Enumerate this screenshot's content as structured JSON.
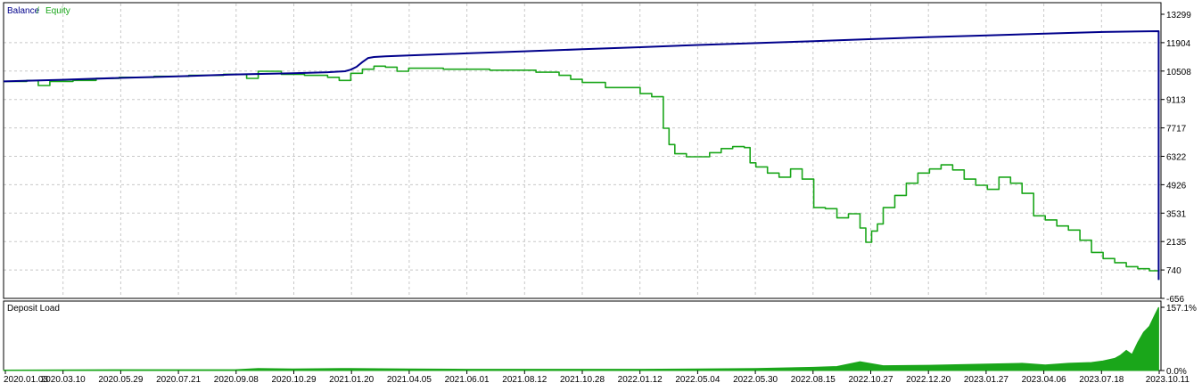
{
  "chart_data": [
    {
      "type": "line",
      "legend": {
        "balance": "Balance",
        "separator": " / ",
        "equity": "Equity",
        "placement": "top-left"
      },
      "ylim": [
        -656,
        13299
      ],
      "yticks": [
        "13299",
        "11904",
        "10508",
        "9113",
        "7717",
        "6322",
        "4926",
        "3531",
        "2135",
        "740",
        "-656"
      ],
      "xticks": [
        "2020.01.03",
        "2020.03.10",
        "2020.05.29",
        "2020.07.21",
        "2020.09.08",
        "2020.10.29",
        "2021.01.20",
        "2021.04.05",
        "2021.06.01",
        "2021.08.12",
        "2021.10.28",
        "2022.01.12",
        "2022.05.04",
        "2022.05.30",
        "2022.08.15",
        "2022.10.27",
        "2022.12.20",
        "2023.01.27",
        "2023.04.06",
        "2023.07.18",
        "2023.10.11"
      ],
      "grid": true,
      "colors": {
        "balance": "#00008b",
        "equity": "#1aa61a",
        "grid": "#c8c8c8",
        "axis": "#000000"
      },
      "series": [
        {
          "name": "Balance",
          "x": [
            0,
            0.05,
            0.1,
            0.15,
            0.2,
            0.25,
            0.28,
            0.295,
            0.3,
            0.305,
            0.31,
            0.315,
            0.32,
            0.33,
            0.35,
            0.4,
            0.45,
            0.5,
            0.55,
            0.6,
            0.65,
            0.7,
            0.75,
            0.8,
            0.85,
            0.9,
            0.95,
            0.998
          ],
          "values": [
            10000,
            10080,
            10170,
            10250,
            10340,
            10400,
            10450,
            10500,
            10580,
            10720,
            10950,
            11150,
            11200,
            11230,
            11280,
            11380,
            11480,
            11580,
            11680,
            11790,
            11880,
            11980,
            12080,
            12180,
            12260,
            12350,
            12430,
            12470
          ]
        },
        {
          "name": "Equity",
          "x": [
            0,
            0.02,
            0.03,
            0.04,
            0.06,
            0.08,
            0.1,
            0.13,
            0.16,
            0.19,
            0.21,
            0.22,
            0.24,
            0.26,
            0.28,
            0.29,
            0.3,
            0.31,
            0.32,
            0.33,
            0.34,
            0.35,
            0.38,
            0.42,
            0.46,
            0.48,
            0.49,
            0.5,
            0.52,
            0.55,
            0.56,
            0.57,
            0.575,
            0.58,
            0.59,
            0.61,
            0.62,
            0.63,
            0.64,
            0.645,
            0.65,
            0.66,
            0.67,
            0.68,
            0.69,
            0.7,
            0.71,
            0.72,
            0.73,
            0.74,
            0.745,
            0.75,
            0.755,
            0.76,
            0.77,
            0.78,
            0.79,
            0.8,
            0.81,
            0.82,
            0.83,
            0.84,
            0.85,
            0.86,
            0.87,
            0.88,
            0.89,
            0.9,
            0.91,
            0.92,
            0.93,
            0.94,
            0.95,
            0.96,
            0.97,
            0.98,
            0.99,
            0.998
          ],
          "values": [
            10000,
            10050,
            9800,
            10000,
            10050,
            10150,
            10200,
            10250,
            10300,
            10350,
            10150,
            10500,
            10350,
            10300,
            10200,
            10050,
            10400,
            10600,
            10750,
            10700,
            10500,
            10650,
            10600,
            10550,
            10450,
            10300,
            10100,
            9950,
            9700,
            9400,
            9250,
            7700,
            6900,
            6450,
            6300,
            6500,
            6700,
            6800,
            6750,
            6000,
            5800,
            5500,
            5300,
            5700,
            5200,
            3800,
            3750,
            3300,
            3500,
            2800,
            2100,
            2650,
            3000,
            3800,
            4400,
            5000,
            5500,
            5700,
            5900,
            5650,
            5200,
            4900,
            4700,
            5300,
            5000,
            4500,
            3400,
            3200,
            2900,
            2700,
            2200,
            1600,
            1300,
            1100,
            900,
            800,
            700,
            250
          ]
        }
      ]
    },
    {
      "type": "area",
      "title": "Deposit Load",
      "ylim": [
        0,
        157.1
      ],
      "yticks": [
        "157.1%",
        "0.0%"
      ],
      "colors": {
        "fill": "#1aa61a"
      },
      "series": [
        {
          "name": "Deposit Load",
          "x": [
            0,
            0.1,
            0.2,
            0.22,
            0.25,
            0.3,
            0.35,
            0.4,
            0.45,
            0.5,
            0.55,
            0.6,
            0.65,
            0.7,
            0.72,
            0.74,
            0.76,
            0.8,
            0.85,
            0.88,
            0.9,
            0.92,
            0.94,
            0.95,
            0.96,
            0.965,
            0.97,
            0.975,
            0.98,
            0.985,
            0.99,
            0.995,
            0.998
          ],
          "values": [
            1,
            2,
            2,
            5,
            4,
            5,
            4,
            3,
            3,
            3,
            3,
            4,
            5,
            8,
            10,
            22,
            12,
            13,
            16,
            18,
            14,
            18,
            20,
            24,
            30,
            38,
            50,
            40,
            70,
            95,
            110,
            140,
            157
          ]
        }
      ]
    }
  ]
}
